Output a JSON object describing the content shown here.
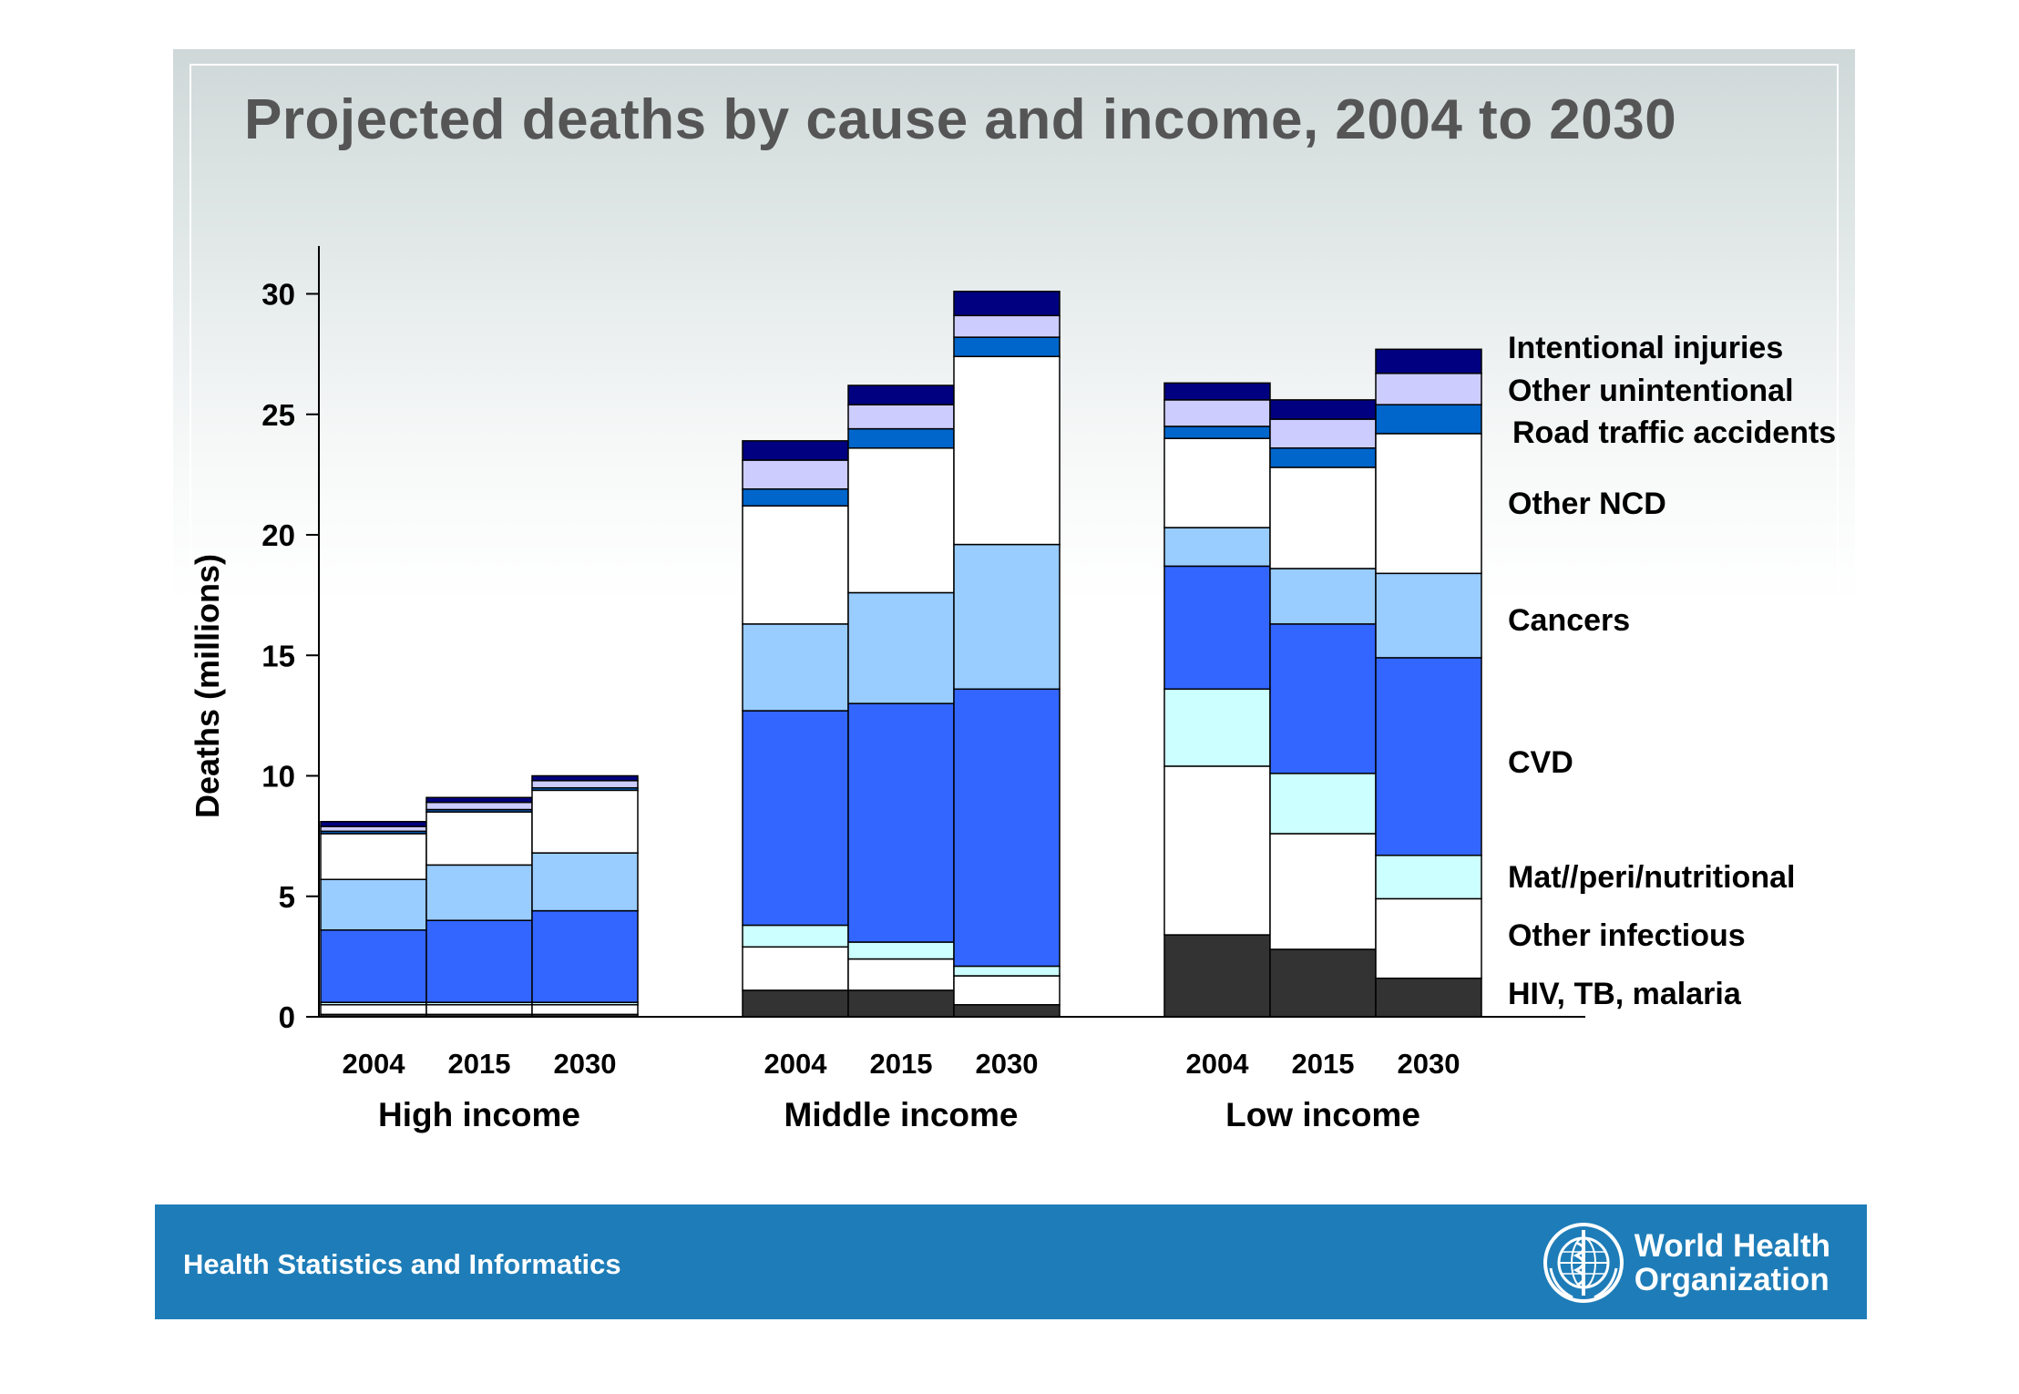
{
  "slide": {
    "title": "Projected deaths by cause and income, 2004 to 2030",
    "footer_text": "Health Statistics and Informatics",
    "logo": {
      "line1": "World Health",
      "line2": "Organization",
      "icon": "who-emblem-icon"
    }
  },
  "chart_data": {
    "type": "bar",
    "stacked": true,
    "ylabel": "Deaths (millions)",
    "ylim": [
      0,
      32
    ],
    "yticks": [
      0,
      5,
      10,
      15,
      20,
      25,
      30
    ],
    "groups": [
      {
        "name": "High income",
        "years": [
          "2004",
          "2015",
          "2030"
        ]
      },
      {
        "name": "Middle income",
        "years": [
          "2004",
          "2015",
          "2030"
        ]
      },
      {
        "name": "Low income",
        "years": [
          "2004",
          "2015",
          "2030"
        ]
      }
    ],
    "series": [
      {
        "name": "HIV, TB, malaria",
        "color": "#333333",
        "values": [
          0.1,
          0.1,
          0.1,
          1.1,
          1.1,
          0.5,
          3.4,
          2.8,
          1.6
        ]
      },
      {
        "name": "Other infectious",
        "color": "#ffffff",
        "values": [
          0.4,
          0.4,
          0.4,
          1.8,
          1.3,
          1.2,
          7.0,
          4.8,
          3.3
        ]
      },
      {
        "name": "Mat//peri/nutritional",
        "color": "#ccffff",
        "values": [
          0.1,
          0.1,
          0.1,
          0.9,
          0.7,
          0.4,
          3.2,
          2.5,
          1.8
        ]
      },
      {
        "name": "CVD",
        "color": "#3366ff",
        "values": [
          3.0,
          3.4,
          3.8,
          8.9,
          9.9,
          11.5,
          5.1,
          6.2,
          8.2
        ]
      },
      {
        "name": "Cancers",
        "color": "#99ccff",
        "values": [
          2.1,
          2.3,
          2.4,
          3.6,
          4.6,
          6.0,
          1.6,
          2.3,
          3.5
        ]
      },
      {
        "name": "Other NCD",
        "color": "#ffffff",
        "values": [
          1.9,
          2.2,
          2.6,
          4.9,
          6.0,
          7.8,
          3.7,
          4.2,
          5.8
        ]
      },
      {
        "name": "Road traffic accidents",
        "color": "#0066cc",
        "values": [
          0.1,
          0.1,
          0.1,
          0.7,
          0.8,
          0.8,
          0.5,
          0.8,
          1.2
        ]
      },
      {
        "name": "Other unintentional",
        "color": "#ccccff",
        "values": [
          0.2,
          0.3,
          0.3,
          1.2,
          1.0,
          0.9,
          1.1,
          1.2,
          1.3
        ]
      },
      {
        "name": "Intentional injuries",
        "color": "#000080",
        "values": [
          0.2,
          0.2,
          0.2,
          0.8,
          0.8,
          1.0,
          0.7,
          0.8,
          1.0
        ]
      }
    ]
  }
}
